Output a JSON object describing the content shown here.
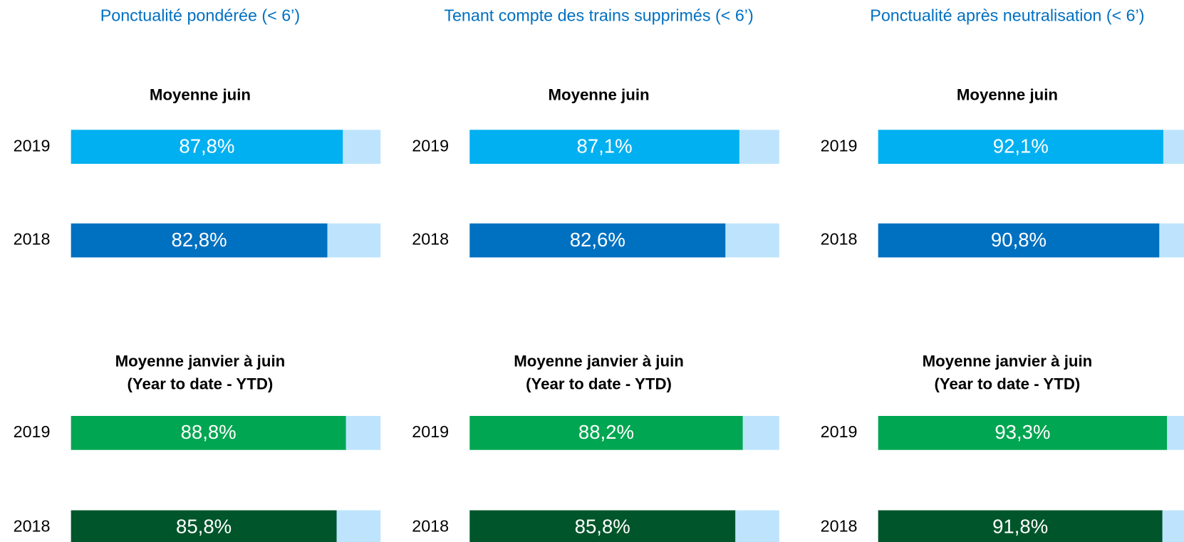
{
  "headers": [
    "Ponctualité pondérée (< 6’)",
    "Tenant compte des trains supprimés (< 6’)",
    "Ponctualité après neutralisation (< 6’)"
  ],
  "chart_data": [
    {
      "type": "bar",
      "orientation": "horizontal",
      "title": "Moyenne juin",
      "categories": [
        "2019",
        "2018"
      ],
      "values": [
        87.8,
        82.8
      ],
      "value_labels": [
        "87,8%",
        "82,8%"
      ],
      "colors": [
        "#00b0f0",
        "#0070c0"
      ],
      "track_color": "#bde4fc",
      "xlim": [
        0,
        100
      ]
    },
    {
      "type": "bar",
      "orientation": "horizontal",
      "title": "Moyenne juin",
      "categories": [
        "2019",
        "2018"
      ],
      "values": [
        87.1,
        82.6
      ],
      "value_labels": [
        "87,1%",
        "82,6%"
      ],
      "colors": [
        "#00b0f0",
        "#0070c0"
      ],
      "track_color": "#bde4fc",
      "xlim": [
        0,
        100
      ]
    },
    {
      "type": "bar",
      "orientation": "horizontal",
      "title": "Moyenne juin",
      "categories": [
        "2019",
        "2018"
      ],
      "values": [
        92.1,
        90.8
      ],
      "value_labels": [
        "92,1%",
        "90,8%"
      ],
      "colors": [
        "#00b0f0",
        "#0070c0"
      ],
      "track_color": "#bde4fc",
      "xlim": [
        0,
        100
      ]
    },
    {
      "type": "bar",
      "orientation": "horizontal",
      "title": "Moyenne janvier à juin",
      "subtitle": "(Year to date - YTD)",
      "categories": [
        "2019",
        "2018"
      ],
      "values": [
        88.8,
        85.8
      ],
      "value_labels": [
        "88,8%",
        "85,8%"
      ],
      "colors": [
        "#00a651",
        "#00552a"
      ],
      "track_color": "#bde4fc",
      "xlim": [
        0,
        100
      ]
    },
    {
      "type": "bar",
      "orientation": "horizontal",
      "title": "Moyenne janvier à juin",
      "subtitle": "(Year to date - YTD)",
      "categories": [
        "2019",
        "2018"
      ],
      "values": [
        88.2,
        85.8
      ],
      "value_labels": [
        "88,2%",
        "85,8%"
      ],
      "colors": [
        "#00a651",
        "#00552a"
      ],
      "track_color": "#bde4fc",
      "xlim": [
        0,
        100
      ]
    },
    {
      "type": "bar",
      "orientation": "horizontal",
      "title": "Moyenne janvier à juin",
      "subtitle": "(Year to date - YTD)",
      "categories": [
        "2019",
        "2018"
      ],
      "values": [
        93.3,
        91.8
      ],
      "value_labels": [
        "93,3%",
        "91,8%"
      ],
      "colors": [
        "#00a651",
        "#00552a"
      ],
      "track_color": "#bde4fc",
      "xlim": [
        0,
        100
      ]
    }
  ]
}
